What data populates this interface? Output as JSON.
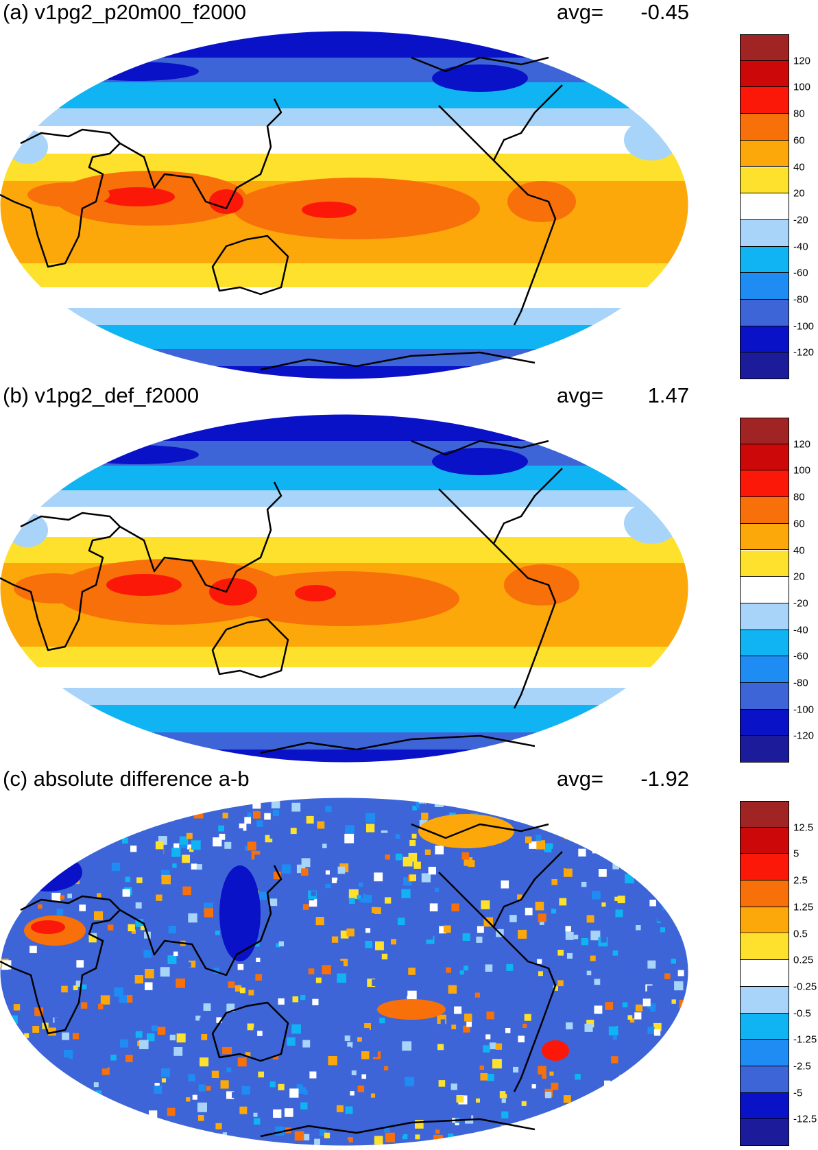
{
  "panels": [
    {
      "title": "(a) v1pg2_p20m00_f2000",
      "avg_label": "avg=",
      "avg_value": "-0.45",
      "colorbar": {
        "colors": [
          "#1c1c9a",
          "#0a12c8",
          "#3d65d8",
          "#1e8cf2",
          "#10b4f2",
          "#a8d4fa",
          "#ffffff",
          "#fde12c",
          "#fca80a",
          "#f8700a",
          "#fb1808",
          "#cc0808",
          "#a02424"
        ],
        "labels": [
          "-120",
          "-100",
          "-80",
          "-60",
          "-40",
          "-20",
          "20",
          "40",
          "60",
          "80",
          "100",
          "120"
        ]
      }
    },
    {
      "title": "(b) v1pg2_def_f2000",
      "avg_label": "avg=",
      "avg_value": "1.47",
      "colorbar": {
        "colors": [
          "#1c1c9a",
          "#0a12c8",
          "#3d65d8",
          "#1e8cf2",
          "#10b4f2",
          "#a8d4fa",
          "#ffffff",
          "#fde12c",
          "#fca80a",
          "#f8700a",
          "#fb1808",
          "#cc0808",
          "#a02424"
        ],
        "labels": [
          "-120",
          "-100",
          "-80",
          "-60",
          "-40",
          "-20",
          "20",
          "40",
          "60",
          "80",
          "100",
          "120"
        ]
      }
    },
    {
      "title": "(c) absolute difference a-b",
      "avg_label": "avg=",
      "avg_value": "-1.92",
      "colorbar": {
        "colors": [
          "#1c1c9a",
          "#0a12c8",
          "#3d65d8",
          "#1e8cf2",
          "#10b4f2",
          "#a8d4fa",
          "#ffffff",
          "#fde12c",
          "#fca80a",
          "#f8700a",
          "#fb1808",
          "#cc0808",
          "#a02424"
        ],
        "labels": [
          "-12.5",
          "-5",
          "-2.5",
          "-1.25",
          "-0.5",
          "-0.25",
          "0.25",
          "0.5",
          "1.25",
          "2.5",
          "5",
          "12.5"
        ]
      }
    }
  ],
  "map_colors": {
    "deep_blue": "#0a12c8",
    "royal_blue": "#3d65d8",
    "blue": "#1e8cf2",
    "cyan": "#10b4f2",
    "light_blue": "#a8d4fa",
    "white": "#ffffff",
    "yellow": "#fde12c",
    "orange": "#fca80a",
    "dark_orange": "#f8700a",
    "red": "#fb1808"
  }
}
